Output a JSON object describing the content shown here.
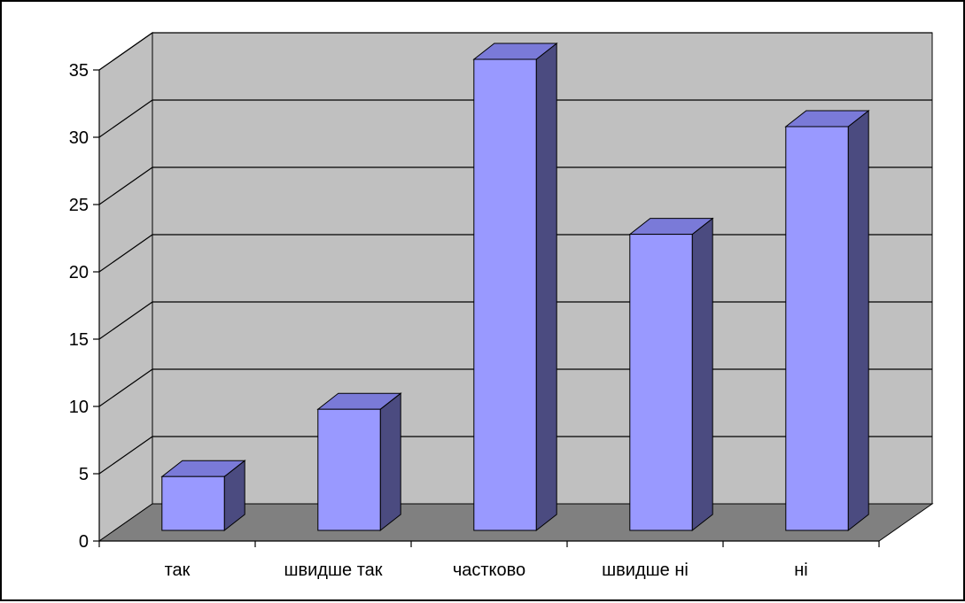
{
  "chart_data": {
    "type": "bar",
    "categories": [
      "так",
      "швидше так",
      "частково",
      "швидше ні",
      "ні"
    ],
    "values": [
      4,
      9,
      35,
      22,
      30
    ],
    "ylim": [
      0,
      35
    ],
    "yticks": [
      0,
      5,
      10,
      15,
      20,
      25,
      30,
      35
    ],
    "title": "",
    "xlabel": "",
    "ylabel": "",
    "grid": true,
    "legend": "none",
    "style": "3d-column"
  },
  "colors": {
    "bar_front": "#9999ff",
    "bar_top": "#7a7ad8",
    "bar_side": "#4b4b80",
    "back_wall": "#c0c0c0",
    "side_wall": "#c0c0c0",
    "floor": "#808080",
    "gridline": "#000000"
  }
}
